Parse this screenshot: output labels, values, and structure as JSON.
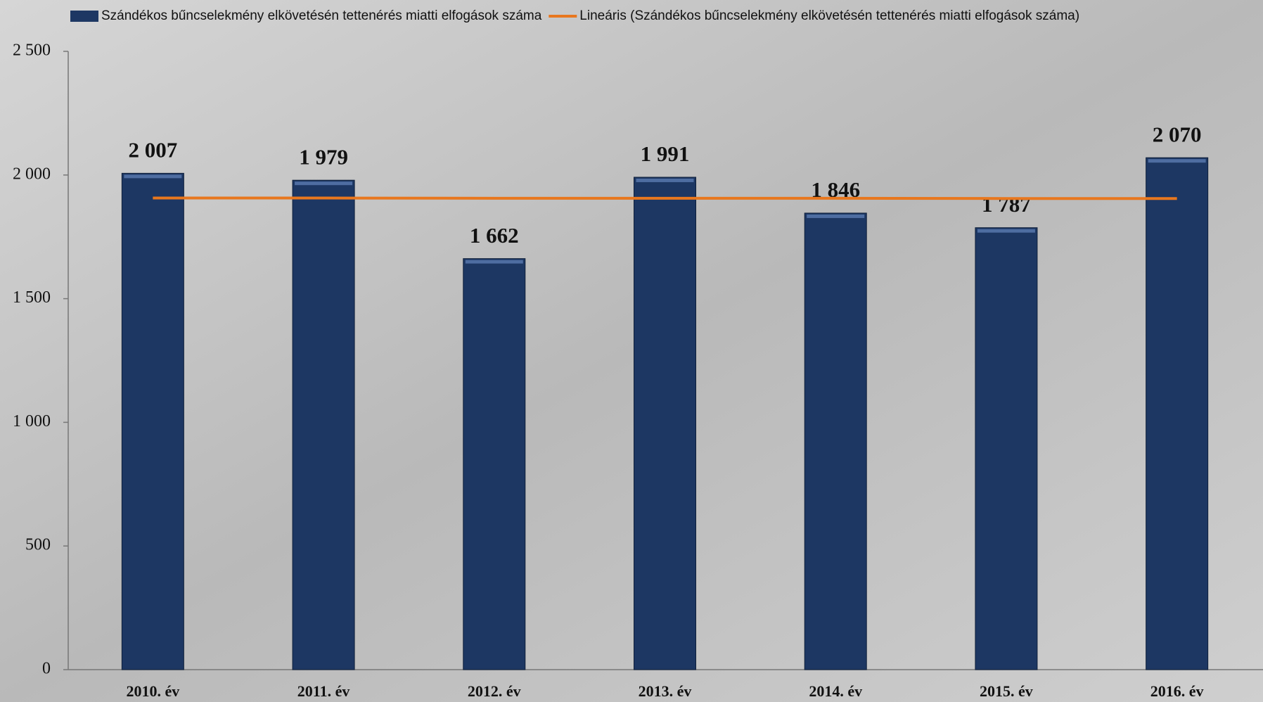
{
  "chart_data": {
    "type": "bar",
    "categories": [
      "2010. év",
      "2011. év",
      "2012. év",
      "2013. év",
      "2014. év",
      "2015. év",
      "2016. év"
    ],
    "series": [
      {
        "name": "Szándékos bűncselekmény elkövetésén tettenérés miatti elfogások száma",
        "color": "#1d3763",
        "values": [
          2007,
          1979,
          1662,
          1991,
          1846,
          1787,
          2070
        ],
        "value_labels": [
          "2 007",
          "1 979",
          "1 662",
          "1 991",
          "1 846",
          "1 787",
          "2 070"
        ]
      },
      {
        "name": "Lineáris (Szándékos bűncselekmény elkövetésén tettenérés miatti elfogások száma)",
        "type": "line",
        "color": "#e8771e",
        "values": [
          1907,
          1907,
          1906,
          1906,
          1906,
          1905,
          1905
        ]
      }
    ],
    "ylim": [
      0,
      2500
    ],
    "yticks": [
      0,
      500,
      {
        "value": 1000,
        "label": "1 000"
      },
      {
        "value": 1500,
        "label": "1 500"
      },
      {
        "value": 2000,
        "label": "2 000"
      },
      {
        "value": 2500,
        "label": "2 500"
      }
    ],
    "grid": false,
    "legend": "top"
  }
}
